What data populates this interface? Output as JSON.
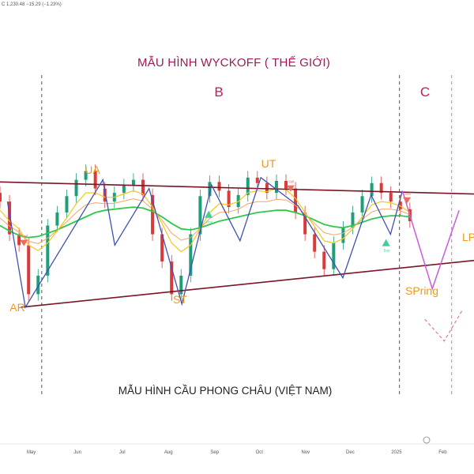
{
  "header": {
    "price_readout": "C 1,230.48  −15.29 (−1.23%)"
  },
  "chart_data": {
    "type": "line",
    "title": "MẪU HÌNH WYCKOFF ( THẾ GIỚI)",
    "footer_title": "MẪU HÌNH CẦU PHONG CHÂU (VIỆT NAM)",
    "x_tick_labels": [
      "May",
      "Jun",
      "Jul",
      "Aug",
      "Sep",
      "Oct",
      "Nov",
      "Dec",
      "2025",
      "Feb"
    ],
    "phases": [
      "B",
      "C"
    ],
    "events": [
      "UA",
      "UT",
      "AR",
      "ST",
      "SPring",
      "LP"
    ],
    "signals": [
      "Sell",
      "Sell",
      "Sell",
      "Buy",
      "Buy"
    ],
    "series": [
      {
        "values": [
          1330,
          1300,
          1290,
          1245,
          1262,
          1308,
          1320,
          1335,
          1350,
          1358,
          1342,
          1330,
          1338,
          1345,
          1350,
          1336,
          1300,
          1275,
          1245,
          1262,
          1300,
          1335,
          1348,
          1340,
          1325,
          1336,
          1352,
          1347,
          1338,
          1349,
          1342,
          1320,
          1300,
          1284,
          1268,
          1292,
          1306,
          1320,
          1335,
          1347,
          1338,
          1330,
          1323,
          1312
        ]
      },
      {
        "values": [
          1308,
          1303,
          1299,
          1297,
          1298,
          1301,
          1304,
          1308,
          1312,
          1316,
          1320,
          1322,
          1323,
          1324,
          1325,
          1324,
          1321,
          1316,
          1310,
          1305,
          1304,
          1306,
          1309,
          1312,
          1314,
          1316,
          1318,
          1320,
          1321,
          1322,
          1322,
          1320,
          1317,
          1313,
          1309,
          1307,
          1306,
          1308,
          1311,
          1314,
          1316,
          1317,
          1317,
          1316
        ]
      },
      {
        "values": [
          1322,
          1312,
          1305,
          1290,
          1285,
          1292,
          1303,
          1315,
          1328,
          1338,
          1338,
          1334,
          1334,
          1337,
          1340,
          1337,
          1325,
          1310,
          1292,
          1284,
          1290,
          1305,
          1320,
          1328,
          1327,
          1330,
          1338,
          1340,
          1339,
          1342,
          1341,
          1333,
          1320,
          1307,
          1294,
          1292,
          1296,
          1305,
          1316,
          1327,
          1330,
          1329,
          1326,
          1320
        ]
      }
    ],
    "zigzag": [
      {
        "x": "2024-04-15",
        "y": 1330
      },
      {
        "x": "2024-04-27",
        "y": 1233
      },
      {
        "x": "2024-06-18",
        "y": 1350
      },
      {
        "x": "2024-06-26",
        "y": 1290
      },
      {
        "x": "2024-07-19",
        "y": 1342
      },
      {
        "x": "2024-08-10",
        "y": 1236
      },
      {
        "x": "2024-08-30",
        "y": 1345
      },
      {
        "x": "2024-09-18",
        "y": 1294
      },
      {
        "x": "2024-10-02",
        "y": 1352
      },
      {
        "x": "2024-10-27",
        "y": 1326
      },
      {
        "x": "2024-11-26",
        "y": 1260
      },
      {
        "x": "2024-12-15",
        "y": 1336
      },
      {
        "x": "2024-12-28",
        "y": 1300
      },
      {
        "x": "2025-01-05",
        "y": 1340
      }
    ],
    "projection_up": [
      {
        "x": "2025-01-05",
        "y": 1340
      },
      {
        "x": "2025-01-25",
        "y": 1250
      },
      {
        "x": "2025-02-12",
        "y": 1322
      }
    ],
    "projection_down": [
      {
        "x": "2025-01-20",
        "y": 1222
      },
      {
        "x": "2025-02-02",
        "y": 1202
      },
      {
        "x": "2025-02-14",
        "y": 1230
      }
    ],
    "channel_upper": [
      {
        "x": "2024-04-10",
        "y": 1348
      },
      {
        "x": "2025-02-22",
        "y": 1337
      }
    ],
    "channel_lower": [
      {
        "x": "2024-04-24",
        "y": 1233
      },
      {
        "x": "2025-02-22",
        "y": 1276
      }
    ],
    "phase_dividers": [
      "2024-05-08",
      "2025-01-03",
      "2025-02-07"
    ],
    "ylim": [
      1080,
      1515
    ],
    "xlim": [
      "2024-04-10",
      "2025-02-22"
    ],
    "colors": {
      "channel": "#7a1426",
      "zigzag": "#3f51b5",
      "projection": "#c95dd8",
      "ma_green": "#2fc94a",
      "ma_yellow": "#f3c81e",
      "ma_orange": "#f5a46a",
      "candle_up": "#1f9e7a",
      "candle_down": "#d93b3b",
      "title": "#9c1b55",
      "event": "#e89a1a",
      "sell": "#ef6c5a",
      "buy": "#3fcf94"
    }
  }
}
